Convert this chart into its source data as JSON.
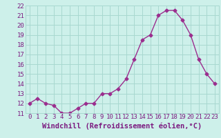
{
  "x": [
    0,
    1,
    2,
    3,
    4,
    5,
    6,
    7,
    8,
    9,
    10,
    11,
    12,
    13,
    14,
    15,
    16,
    17,
    18,
    19,
    20,
    21,
    22,
    23
  ],
  "y": [
    12.0,
    12.5,
    12.0,
    11.8,
    11.0,
    11.0,
    11.5,
    12.0,
    12.0,
    13.0,
    13.0,
    13.5,
    14.5,
    16.5,
    18.5,
    19.0,
    21.0,
    21.5,
    21.5,
    20.5,
    19.0,
    16.5,
    15.0,
    14.0
  ],
  "line_color": "#9b2d8e",
  "marker": "D",
  "bg_color": "#cdf0ea",
  "grid_color": "#a8d8d0",
  "xlabel": "Windchill (Refroidissement éolien,°C)",
  "xlabel_color": "#7b1a80",
  "tick_color": "#7b1a80",
  "ylim": [
    11,
    22
  ],
  "xlim": [
    -0.5,
    23.5
  ],
  "yticks": [
    11,
    12,
    13,
    14,
    15,
    16,
    17,
    18,
    19,
    20,
    21,
    22
  ],
  "xticks": [
    0,
    1,
    2,
    3,
    4,
    5,
    6,
    7,
    8,
    9,
    10,
    11,
    12,
    13,
    14,
    15,
    16,
    17,
    18,
    19,
    20,
    21,
    22,
    23
  ],
  "tick_fontsize": 6.5,
  "xlabel_fontsize": 7.5
}
